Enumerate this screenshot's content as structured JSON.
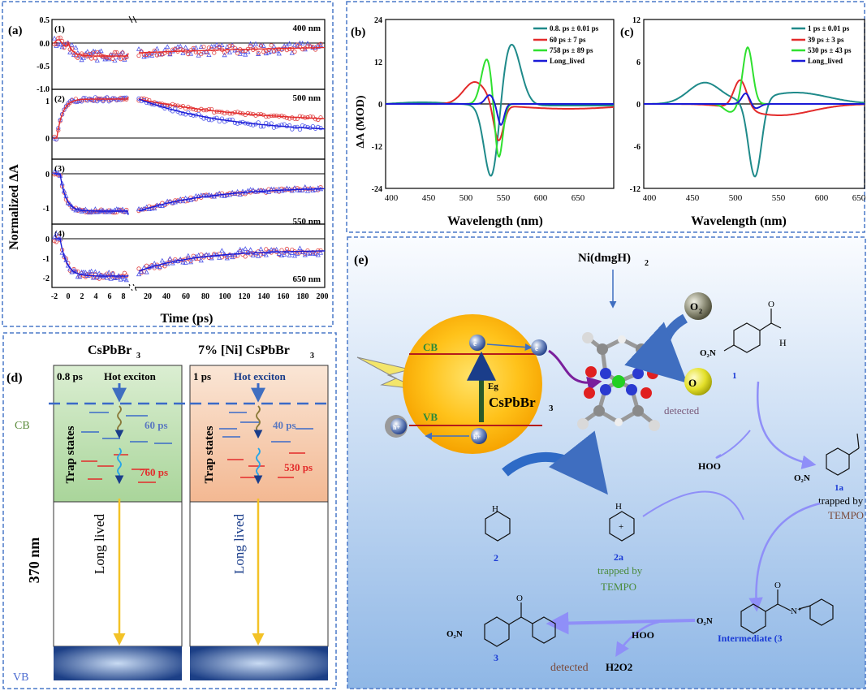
{
  "panel_a": {
    "label": "(a)",
    "ylabel": "Normalized ΔA",
    "xlabel": "Time (ps)",
    "x_ticks_left": [
      "-2",
      "0",
      "2",
      "4",
      "6",
      "8"
    ],
    "x_ticks_right": [
      "20",
      "40",
      "60",
      "80",
      "100",
      "120",
      "140",
      "160",
      "180",
      "200"
    ],
    "subplots": [
      {
        "id": "(1)",
        "wavelength": "400 nm",
        "y_ticks": [
          "0.5",
          "0.0",
          "-0.5",
          "-1.0"
        ]
      },
      {
        "id": "(2)",
        "wavelength": "500 nm",
        "y_ticks": [
          "1",
          "0"
        ]
      },
      {
        "id": "(3)",
        "wavelength": "550 nm",
        "y_ticks": [
          "0",
          "-1"
        ]
      },
      {
        "id": "(4)",
        "wavelength": "650 nm",
        "y_ticks": [
          "0",
          "-1",
          "-2"
        ]
      }
    ]
  },
  "panel_b": {
    "label": "(b)",
    "ylabel": "ΔA (MOD)",
    "xlabel": "Wavelength (nm)",
    "y_ticks": [
      "24",
      "12",
      "0",
      "-12",
      "-24"
    ],
    "x_ticks": [
      "400",
      "450",
      "500",
      "550",
      "600",
      "650"
    ],
    "legend": [
      "0.8. ps ± 0.01 ps",
      "60 ps ± 7 ps",
      "758 ps ± 89 ps",
      "Long_lived"
    ]
  },
  "panel_c": {
    "label": "(c)",
    "xlabel": "Wavelength (nm)",
    "y_ticks": [
      "12",
      "6",
      "0",
      "-6",
      "-12"
    ],
    "x_ticks": [
      "400",
      "450",
      "500",
      "550",
      "600",
      "650"
    ],
    "legend": [
      "1 ps ± 0.01 ps",
      "39 ps ± 3 ps",
      "530 ps ± 43 ps",
      "Long_lived"
    ]
  },
  "panel_d": {
    "label": "(d)",
    "title_left": "CsPbBr",
    "title_left_sub": "3",
    "title_right": "7% [Ni] CsPbBr",
    "title_right_sub": "3",
    "cb": "CB",
    "vb": "VB",
    "excitation": "370 nm",
    "left": {
      "hot_time": "0.8 ps",
      "hot_label": "Hot exciton",
      "trap_label": "Trap states",
      "t1": "60 ps",
      "t2": "760 ps",
      "long": "Long lived"
    },
    "right": {
      "hot_time": "1 ps",
      "hot_label": "Hot exciton",
      "trap_label": "Trap states",
      "t1": "40 ps",
      "t2": "530 ps",
      "long": "Long lived"
    }
  },
  "panel_e": {
    "label": "(e)",
    "catalyst": "Ni(dmgH)",
    "catalyst_sub": "2",
    "o2": "O",
    "o2_sub": "2",
    "superoxide": "O",
    "cb": "CB",
    "vb": "VB",
    "eg": "Eg",
    "semiconductor": "CsPbBr",
    "semiconductor_sub": "3",
    "electron": "e",
    "hole": "h+",
    "detected_1": "detected",
    "detected_2": "detected",
    "h2o2": "H2O2",
    "hoo_1": "HOO",
    "hoo_2": "HOO",
    "label_1": "1",
    "label_1a": "1a",
    "trapped_1a": "trapped by",
    "tempo_1a": "TEMPO",
    "label_2": "2",
    "label_2a": "2a",
    "trapped_2a": "trapped by",
    "tempo_2a": "TEMPO",
    "label_3": "3",
    "intermediate": "Intermediate (3"
  },
  "colors": {
    "teal": "#1f8a8a",
    "red": "#e32b2b",
    "green": "#2fe02f",
    "blue": "#1a1ad6",
    "dash": "#4a78c8"
  }
}
